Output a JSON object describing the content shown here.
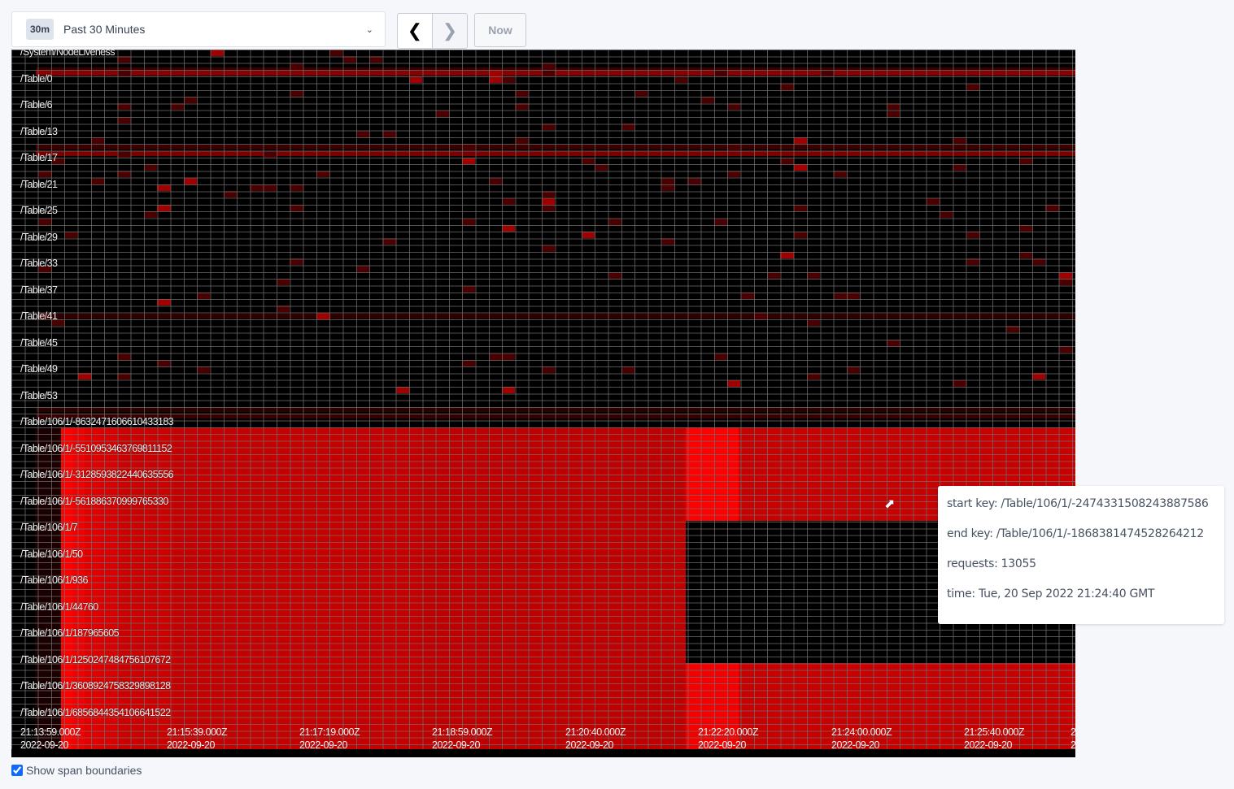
{
  "time_picker": {
    "badge": "30m",
    "label": "Past 30 Minutes",
    "chevron": "chevron-down-icon"
  },
  "nav": {
    "prev_icon": "chevron-left-icon",
    "next_icon": "chevron-right-icon",
    "now_label": "Now"
  },
  "heatmap": {
    "y_labels": [
      "/System/NodeLiveness",
      "/Table/0",
      "/Table/6",
      "/Table/13",
      "/Table/17",
      "/Table/21",
      "/Table/25",
      "/Table/29",
      "/Table/33",
      "/Table/37",
      "/Table/41",
      "/Table/45",
      "/Table/49",
      "/Table/53",
      "/Table/106/1/-8632471606610433183",
      "/Table/106/1/-5510953463769811152",
      "/Table/106/1/-3128593822440635556",
      "/Table/106/1/-561886370999765330",
      "/Table/106/1/7",
      "/Table/106/1/50",
      "/Table/106/1/936",
      "/Table/106/1/44760",
      "/Table/106/1/187965605",
      "/Table/106/1/1250247484756107672",
      "/Table/106/1/3608924758329898128",
      "/Table/106/1/6856844354106641522"
    ],
    "x_labels": [
      {
        "time": "21:13:59.000Z",
        "date": "2022-09-20"
      },
      {
        "time": "21:15:39.000Z",
        "date": "2022-09-20"
      },
      {
        "time": "21:17:19.000Z",
        "date": "2022-09-20"
      },
      {
        "time": "21:18:59.000Z",
        "date": "2022-09-20"
      },
      {
        "time": "21:20:40.000Z",
        "date": "2022-09-20"
      },
      {
        "time": "21:22:20.000Z",
        "date": "2022-09-20"
      },
      {
        "time": "21:24:00.000Z",
        "date": "2022-09-20"
      },
      {
        "time": "21:25:40.000Z",
        "date": "2022-09-20"
      },
      {
        "time": "2",
        "date": "2"
      }
    ],
    "colors": {
      "hot": "#ff0000",
      "warm": "#c80000",
      "cold": "#000000",
      "dim": "#3a0000"
    }
  },
  "tooltip": {
    "start_key": "start key: /Table/106/1/-2474331508243887586",
    "end_key": "end key: /Table/106/1/-1868381474528264212",
    "requests": "requests: 13055",
    "time": "time: Tue, 20 Sep 2022 21:24:40 GMT"
  },
  "show_span_boundaries": {
    "label": "Show span boundaries",
    "checked": true
  }
}
